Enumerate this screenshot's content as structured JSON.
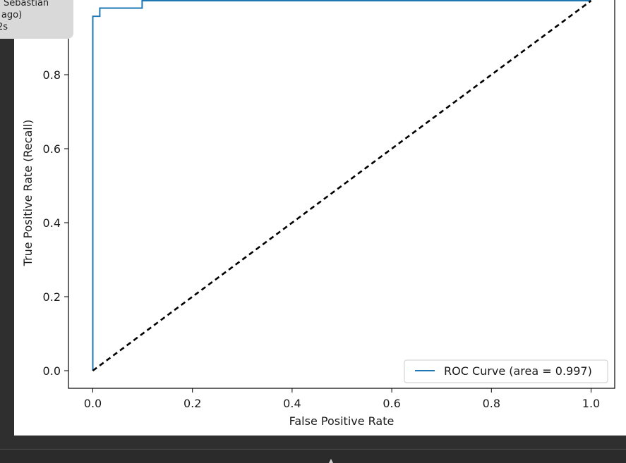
{
  "tooltip": {
    "line1": "Sebastian",
    "line2": "es ago)",
    "line3": "2s"
  },
  "chart_data": {
    "type": "line",
    "title": "",
    "xlabel": "False Positive Rate",
    "ylabel": "True Positive Rate (Recall)",
    "xlim": [
      -0.05,
      1.05
    ],
    "ylim": [
      -0.05,
      1.05
    ],
    "xticks": [
      0.0,
      0.2,
      0.4,
      0.6,
      0.8,
      1.0
    ],
    "yticks": [
      0.0,
      0.2,
      0.4,
      0.6,
      0.8
    ],
    "xtick_labels": [
      "0.0",
      "0.2",
      "0.4",
      "0.6",
      "0.8",
      "1.0"
    ],
    "ytick_labels": [
      "0.0",
      "0.2",
      "0.4",
      "0.6",
      "0.8"
    ],
    "grid": false,
    "legend_position": "lower-right",
    "series": [
      {
        "name": "ROC Curve (area = 0.997)",
        "color": "#1f77b4",
        "style": "solid",
        "x": [
          0.0,
          0.0,
          0.014,
          0.014,
          0.099,
          0.099,
          1.0
        ],
        "y": [
          0.0,
          0.958,
          0.958,
          0.98,
          0.98,
          1.0,
          1.0
        ]
      },
      {
        "name": "",
        "color": "#000000",
        "style": "dashed",
        "x": [
          0.0,
          1.0
        ],
        "y": [
          0.0,
          1.0
        ]
      }
    ]
  },
  "colors": {
    "background": "#2f2f2f",
    "panel": "#ffffff",
    "tooltip": "#d9d9d9",
    "roc_line": "#1f77b4",
    "diagonal": "#000000"
  }
}
